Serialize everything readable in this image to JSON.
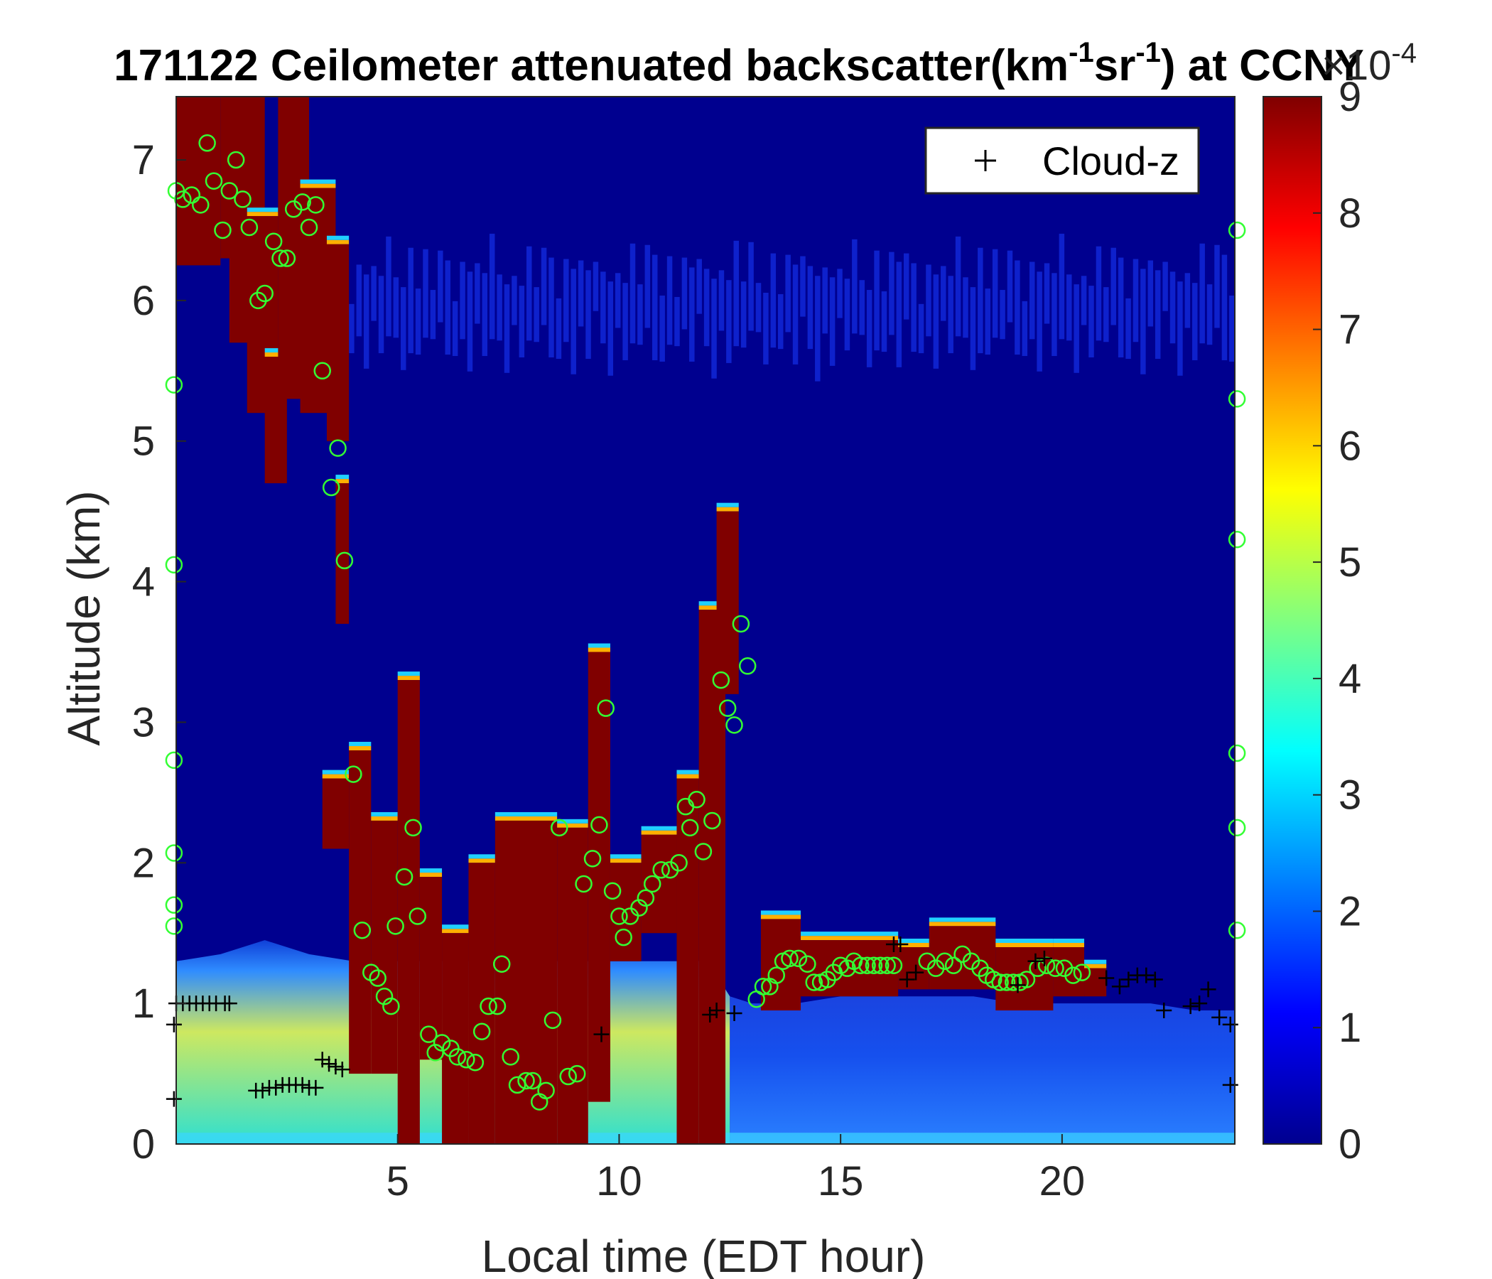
{
  "chart_data": {
    "type": "heatmap",
    "title": {
      "prefix": "171122 Ceilometer attenuated backscatter(km",
      "sup1": "-1",
      "mid": "sr",
      "sup2": "-1",
      "suffix": ") at CCNY"
    },
    "xlabel": "Local time (EDT hour)",
    "ylabel": "Altitude (km)",
    "xlim": [
      0,
      23.9
    ],
    "ylim": [
      0,
      7.45
    ],
    "xticks": [
      5,
      10,
      15,
      20
    ],
    "yticks": [
      0,
      1,
      2,
      3,
      4,
      5,
      6,
      7
    ],
    "colorbar": {
      "colormap": "jet",
      "clim": [
        0,
        9
      ],
      "ticks": [
        0,
        1,
        2,
        3,
        4,
        5,
        6,
        7,
        8,
        9
      ],
      "exponent_label": "×10",
      "exponent_power": "-4"
    },
    "colors": {
      "background_field": "#00008f",
      "saturated_cloud": "#800000",
      "marker_circle": "#33ff33",
      "marker_plus": "#000000"
    },
    "legend": {
      "position": "top-right",
      "entries": [
        "Cloud-z"
      ]
    },
    "boundary_layer_top": [
      [
        0,
        1.3
      ],
      [
        1,
        1.35
      ],
      [
        2,
        1.45
      ],
      [
        3,
        1.35
      ],
      [
        4,
        1.3
      ],
      [
        5,
        1.3
      ],
      [
        6,
        1.3
      ],
      [
        7,
        1.3
      ],
      [
        8,
        1.3
      ],
      [
        9,
        1.3
      ],
      [
        10,
        1.3
      ],
      [
        11,
        1.3
      ],
      [
        12,
        1.3
      ],
      [
        12.5,
        1.05
      ],
      [
        13,
        1.0
      ],
      [
        14,
        1.0
      ],
      [
        15,
        1.05
      ],
      [
        16,
        1.05
      ],
      [
        17,
        1.05
      ],
      [
        18,
        1.05
      ],
      [
        19,
        1.0
      ],
      [
        20,
        1.0
      ],
      [
        21,
        1.0
      ],
      [
        22,
        1.0
      ],
      [
        23,
        0.95
      ],
      [
        23.9,
        0.95
      ]
    ],
    "cloud_blocks": [
      {
        "x": [
          0.0,
          1.0
        ],
        "y": [
          6.25,
          7.45
        ]
      },
      {
        "x": [
          1.0,
          1.5
        ],
        "y": [
          6.3,
          7.45
        ]
      },
      {
        "x": [
          1.2,
          2.0
        ],
        "y": [
          5.7,
          7.45
        ]
      },
      {
        "x": [
          1.6,
          2.3
        ],
        "y": [
          5.2,
          6.6
        ]
      },
      {
        "x": [
          2.0,
          2.5
        ],
        "y": [
          4.7,
          5.6
        ]
      },
      {
        "x": [
          2.3,
          3.0
        ],
        "y": [
          5.3,
          7.45
        ]
      },
      {
        "x": [
          2.8,
          3.6
        ],
        "y": [
          5.2,
          6.8
        ]
      },
      {
        "x": [
          3.4,
          3.9
        ],
        "y": [
          5.0,
          6.4
        ]
      },
      {
        "x": [
          3.6,
          3.9
        ],
        "y": [
          3.7,
          4.7
        ]
      },
      {
        "x": [
          3.3,
          3.9
        ],
        "y": [
          2.1,
          2.6
        ]
      },
      {
        "x": [
          3.9,
          4.4
        ],
        "y": [
          0.5,
          2.8
        ]
      },
      {
        "x": [
          4.4,
          5.0
        ],
        "y": [
          0.5,
          2.3
        ]
      },
      {
        "x": [
          5.0,
          5.5
        ],
        "y": [
          0.0,
          3.3
        ]
      },
      {
        "x": [
          5.5,
          6.0
        ],
        "y": [
          0.6,
          1.9
        ]
      },
      {
        "x": [
          6.0,
          6.6
        ],
        "y": [
          0.0,
          1.5
        ]
      },
      {
        "x": [
          6.6,
          7.2
        ],
        "y": [
          0.0,
          2.0
        ]
      },
      {
        "x": [
          7.2,
          8.6
        ],
        "y": [
          0.0,
          2.3
        ]
      },
      {
        "x": [
          8.6,
          9.3
        ],
        "y": [
          0.0,
          2.25
        ]
      },
      {
        "x": [
          9.3,
          9.8
        ],
        "y": [
          0.3,
          3.5
        ]
      },
      {
        "x": [
          9.8,
          10.5
        ],
        "y": [
          1.3,
          2.0
        ]
      },
      {
        "x": [
          10.5,
          11.3
        ],
        "y": [
          1.5,
          2.2
        ]
      },
      {
        "x": [
          11.3,
          11.8
        ],
        "y": [
          0.0,
          2.6
        ]
      },
      {
        "x": [
          11.8,
          12.4
        ],
        "y": [
          0.0,
          3.8
        ]
      },
      {
        "x": [
          12.2,
          12.7
        ],
        "y": [
          3.2,
          4.5
        ]
      },
      {
        "x": [
          13.2,
          14.1
        ],
        "y": [
          0.95,
          1.6
        ]
      },
      {
        "x": [
          14.1,
          16.3
        ],
        "y": [
          1.05,
          1.45
        ]
      },
      {
        "x": [
          16.3,
          17.0
        ],
        "y": [
          1.1,
          1.4
        ]
      },
      {
        "x": [
          17.0,
          18.5
        ],
        "y": [
          1.1,
          1.55
        ]
      },
      {
        "x": [
          18.5,
          19.8
        ],
        "y": [
          0.95,
          1.4
        ]
      },
      {
        "x": [
          19.8,
          20.5
        ],
        "y": [
          1.05,
          1.4
        ]
      },
      {
        "x": [
          20.5,
          21.0
        ],
        "y": [
          1.05,
          1.25
        ]
      }
    ],
    "circle_markers": [
      [
        0.0,
        6.78
      ],
      [
        0.15,
        6.72
      ],
      [
        0.35,
        6.75
      ],
      [
        0.55,
        6.68
      ],
      [
        0.7,
        7.12
      ],
      [
        0.85,
        6.85
      ],
      [
        1.05,
        6.5
      ],
      [
        1.2,
        6.78
      ],
      [
        1.35,
        7.0
      ],
      [
        1.5,
        6.72
      ],
      [
        1.65,
        6.52
      ],
      [
        1.85,
        6.0
      ],
      [
        2.0,
        6.05
      ],
      [
        2.2,
        6.42
      ],
      [
        2.35,
        6.3
      ],
      [
        2.5,
        6.3
      ],
      [
        2.65,
        6.65
      ],
      [
        2.85,
        6.7
      ],
      [
        3.0,
        6.52
      ],
      [
        3.15,
        6.68
      ],
      [
        3.3,
        5.5
      ],
      [
        3.5,
        4.67
      ],
      [
        3.65,
        4.95
      ],
      [
        3.8,
        4.15
      ],
      [
        4.0,
        2.63
      ],
      [
        4.2,
        1.52
      ],
      [
        4.4,
        1.22
      ],
      [
        4.55,
        1.18
      ],
      [
        4.7,
        1.05
      ],
      [
        4.85,
        0.98
      ],
      [
        4.95,
        1.55
      ],
      [
        5.15,
        1.9
      ],
      [
        5.35,
        2.25
      ],
      [
        5.45,
        1.62
      ],
      [
        5.7,
        0.78
      ],
      [
        5.85,
        0.65
      ],
      [
        6.0,
        0.72
      ],
      [
        6.2,
        0.68
      ],
      [
        6.35,
        0.62
      ],
      [
        6.55,
        0.6
      ],
      [
        6.75,
        0.58
      ],
      [
        6.9,
        0.8
      ],
      [
        7.05,
        0.98
      ],
      [
        7.25,
        0.98
      ],
      [
        7.35,
        1.28
      ],
      [
        7.55,
        0.62
      ],
      [
        7.7,
        0.42
      ],
      [
        7.9,
        0.45
      ],
      [
        8.05,
        0.45
      ],
      [
        8.2,
        0.3
      ],
      [
        8.35,
        0.38
      ],
      [
        8.5,
        0.88
      ],
      [
        8.65,
        2.25
      ],
      [
        8.85,
        0.48
      ],
      [
        9.05,
        0.5
      ],
      [
        9.2,
        1.85
      ],
      [
        9.4,
        2.03
      ],
      [
        9.55,
        2.27
      ],
      [
        9.7,
        3.1
      ],
      [
        9.85,
        1.8
      ],
      [
        10.0,
        1.62
      ],
      [
        10.1,
        1.47
      ],
      [
        10.25,
        1.62
      ],
      [
        10.45,
        1.68
      ],
      [
        10.6,
        1.75
      ],
      [
        10.75,
        1.85
      ],
      [
        10.95,
        1.95
      ],
      [
        11.15,
        1.95
      ],
      [
        11.35,
        2.0
      ],
      [
        11.5,
        2.4
      ],
      [
        11.6,
        2.25
      ],
      [
        11.75,
        2.45
      ],
      [
        11.9,
        2.08
      ],
      [
        12.1,
        2.3
      ],
      [
        12.3,
        3.3
      ],
      [
        12.45,
        3.1
      ],
      [
        12.6,
        2.98
      ],
      [
        12.75,
        3.7
      ],
      [
        12.9,
        3.4
      ],
      [
        13.1,
        1.03
      ],
      [
        13.25,
        1.12
      ],
      [
        13.4,
        1.12
      ],
      [
        13.55,
        1.2
      ],
      [
        13.7,
        1.3
      ],
      [
        13.85,
        1.32
      ],
      [
        14.05,
        1.32
      ],
      [
        14.25,
        1.28
      ],
      [
        14.4,
        1.15
      ],
      [
        14.55,
        1.15
      ],
      [
        14.7,
        1.17
      ],
      [
        14.85,
        1.22
      ],
      [
        15.0,
        1.27
      ],
      [
        15.15,
        1.25
      ],
      [
        15.3,
        1.3
      ],
      [
        15.45,
        1.27
      ],
      [
        15.6,
        1.27
      ],
      [
        15.75,
        1.27
      ],
      [
        15.9,
        1.27
      ],
      [
        16.05,
        1.27
      ],
      [
        16.2,
        1.27
      ],
      [
        16.95,
        1.3
      ],
      [
        17.15,
        1.25
      ],
      [
        17.35,
        1.3
      ],
      [
        17.55,
        1.27
      ],
      [
        17.75,
        1.35
      ],
      [
        17.95,
        1.3
      ],
      [
        18.15,
        1.25
      ],
      [
        18.3,
        1.2
      ],
      [
        18.45,
        1.17
      ],
      [
        18.6,
        1.15
      ],
      [
        18.75,
        1.15
      ],
      [
        18.9,
        1.15
      ],
      [
        19.05,
        1.15
      ],
      [
        19.2,
        1.17
      ],
      [
        19.45,
        1.25
      ],
      [
        19.65,
        1.27
      ],
      [
        19.85,
        1.25
      ],
      [
        20.05,
        1.25
      ],
      [
        20.25,
        1.2
      ],
      [
        20.45,
        1.22
      ],
      [
        23.95,
        6.5
      ],
      [
        23.95,
        5.3
      ],
      [
        23.95,
        4.3
      ],
      [
        23.95,
        2.78
      ],
      [
        23.95,
        2.25
      ],
      [
        23.95,
        1.52
      ],
      [
        -0.05,
        5.4
      ],
      [
        -0.05,
        4.12
      ],
      [
        -0.05,
        2.73
      ],
      [
        -0.05,
        2.07
      ],
      [
        -0.05,
        1.7
      ],
      [
        -0.05,
        1.55
      ]
    ],
    "plus_markers": [
      [
        0.0,
        1.0
      ],
      [
        0.15,
        1.0
      ],
      [
        0.3,
        1.0
      ],
      [
        0.45,
        1.0
      ],
      [
        0.6,
        1.0
      ],
      [
        0.75,
        1.0
      ],
      [
        0.9,
        1.0
      ],
      [
        1.1,
        1.0
      ],
      [
        1.2,
        1.0
      ],
      [
        1.8,
        0.38
      ],
      [
        1.95,
        0.38
      ],
      [
        2.1,
        0.4
      ],
      [
        2.25,
        0.4
      ],
      [
        2.4,
        0.42
      ],
      [
        2.55,
        0.42
      ],
      [
        2.7,
        0.42
      ],
      [
        2.85,
        0.42
      ],
      [
        3.0,
        0.4
      ],
      [
        3.15,
        0.4
      ],
      [
        3.3,
        0.6
      ],
      [
        3.45,
        0.57
      ],
      [
        3.6,
        0.55
      ],
      [
        3.75,
        0.53
      ],
      [
        9.6,
        0.78
      ],
      [
        12.05,
        0.92
      ],
      [
        12.2,
        0.95
      ],
      [
        12.6,
        0.93
      ],
      [
        16.2,
        1.42
      ],
      [
        16.35,
        1.42
      ],
      [
        16.5,
        1.17
      ],
      [
        16.7,
        1.22
      ],
      [
        19.4,
        1.3
      ],
      [
        19.6,
        1.32
      ],
      [
        19.0,
        1.13
      ],
      [
        21.0,
        1.18
      ],
      [
        21.3,
        1.12
      ],
      [
        21.5,
        1.17
      ],
      [
        21.7,
        1.2
      ],
      [
        21.9,
        1.2
      ],
      [
        22.1,
        1.17
      ],
      [
        22.3,
        0.95
      ],
      [
        22.9,
        0.98
      ],
      [
        23.1,
        1.0
      ],
      [
        23.3,
        1.1
      ],
      [
        23.55,
        0.9
      ],
      [
        23.8,
        0.85
      ],
      [
        23.8,
        0.42
      ],
      [
        -0.05,
        0.32
      ],
      [
        -0.05,
        0.85
      ]
    ]
  }
}
